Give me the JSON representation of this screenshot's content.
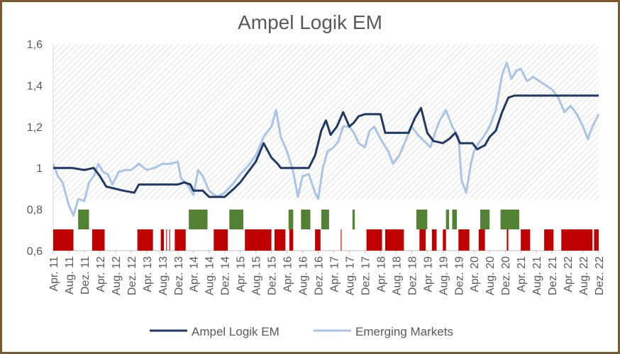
{
  "chart_data": {
    "type": "line",
    "title": "Ampel Logik EM",
    "ylim": [
      0.6,
      1.6
    ],
    "y_ticks": [
      "1,6",
      "1,4",
      "1,2",
      "1",
      "0,8",
      "0,6"
    ],
    "x_tick_labels": [
      "Apr. 11",
      "Aug. 11",
      "Dez. 11",
      "Apr. 12",
      "Aug. 12",
      "Dez. 12",
      "Apr. 13",
      "Aug. 13",
      "Dez. 13",
      "Apr. 14",
      "Aug. 14",
      "Dez. 14",
      "Apr. 15",
      "Aug. 15",
      "Dez. 15",
      "Apr. 16",
      "Aug. 16",
      "Dez. 16",
      "Apr. 17",
      "Aug. 17",
      "Dez. 17",
      "Apr. 18",
      "Aug. 18",
      "Dez. 18",
      "Apr. 19",
      "Aug. 19",
      "Dez. 19",
      "Apr. 20",
      "Aug. 20",
      "Dez. 20",
      "Apr. 21",
      "Aug. 21",
      "Dez. 21",
      "Apr. 22",
      "Aug. 22",
      "Dez. 22"
    ],
    "grid": false,
    "legend_position": "bottom",
    "series": [
      {
        "name": "Ampel Logik EM",
        "color": "#1f3864",
        "points": [
          [
            0,
            1.0
          ],
          [
            1.2,
            1.0
          ],
          [
            2.0,
            0.99
          ],
          [
            2.6,
            1.0
          ],
          [
            3.0,
            0.96
          ],
          [
            3.4,
            0.91
          ],
          [
            4.5,
            0.89
          ],
          [
            5.2,
            0.88
          ],
          [
            5.5,
            0.92
          ],
          [
            8.0,
            0.92
          ],
          [
            8.4,
            0.93
          ],
          [
            8.8,
            0.92
          ],
          [
            9.0,
            0.89
          ],
          [
            9.6,
            0.89
          ],
          [
            10.0,
            0.86
          ],
          [
            11.0,
            0.86
          ],
          [
            11.6,
            0.9
          ],
          [
            12.0,
            0.93
          ],
          [
            12.6,
            0.99
          ],
          [
            13.0,
            1.03
          ],
          [
            13.5,
            1.12
          ],
          [
            14.0,
            1.05
          ],
          [
            14.4,
            1.02
          ],
          [
            14.6,
            1.0
          ],
          [
            16.0,
            1.0
          ],
          [
            16.4,
            1.0
          ],
          [
            16.8,
            1.06
          ],
          [
            17.2,
            1.18
          ],
          [
            17.5,
            1.23
          ],
          [
            17.8,
            1.16
          ],
          [
            18.2,
            1.2
          ],
          [
            18.6,
            1.27
          ],
          [
            19.0,
            1.2
          ],
          [
            19.3,
            1.22
          ],
          [
            19.6,
            1.25
          ],
          [
            20.0,
            1.26
          ],
          [
            21.0,
            1.26
          ],
          [
            21.3,
            1.17
          ],
          [
            22.8,
            1.17
          ],
          [
            23.2,
            1.24
          ],
          [
            23.6,
            1.29
          ],
          [
            24.0,
            1.17
          ],
          [
            24.4,
            1.13
          ],
          [
            25.0,
            1.12
          ],
          [
            25.4,
            1.14
          ],
          [
            25.8,
            1.17
          ],
          [
            26.1,
            1.12
          ],
          [
            26.6,
            1.12
          ],
          [
            26.9,
            1.12
          ],
          [
            27.2,
            1.09
          ],
          [
            27.7,
            1.11
          ],
          [
            28.0,
            1.15
          ],
          [
            28.4,
            1.18
          ],
          [
            28.8,
            1.27
          ],
          [
            29.2,
            1.34
          ],
          [
            29.6,
            1.35
          ],
          [
            30.0,
            1.35
          ],
          [
            35.0,
            1.35
          ]
        ]
      },
      {
        "name": "Emerging Markets",
        "color": "#a9c4e6",
        "points": [
          [
            0,
            1.02
          ],
          [
            0.3,
            0.96
          ],
          [
            0.6,
            0.93
          ],
          [
            1.0,
            0.82
          ],
          [
            1.3,
            0.77
          ],
          [
            1.6,
            0.85
          ],
          [
            2.0,
            0.84
          ],
          [
            2.3,
            0.93
          ],
          [
            2.6,
            0.96
          ],
          [
            2.9,
            1.02
          ],
          [
            3.2,
            0.98
          ],
          [
            3.5,
            0.97
          ],
          [
            3.8,
            0.92
          ],
          [
            4.2,
            0.98
          ],
          [
            4.6,
            0.99
          ],
          [
            5.0,
            0.99
          ],
          [
            5.5,
            1.02
          ],
          [
            6.0,
            0.99
          ],
          [
            6.5,
            1.0
          ],
          [
            7.0,
            1.02
          ],
          [
            7.5,
            1.02
          ],
          [
            8.0,
            1.03
          ],
          [
            8.2,
            0.95
          ],
          [
            8.6,
            0.92
          ],
          [
            9.0,
            0.87
          ],
          [
            9.3,
            0.99
          ],
          [
            9.6,
            0.96
          ],
          [
            10.0,
            0.89
          ],
          [
            10.5,
            0.86
          ],
          [
            11.0,
            0.88
          ],
          [
            11.5,
            0.92
          ],
          [
            12.0,
            0.97
          ],
          [
            12.5,
            1.01
          ],
          [
            13.0,
            1.06
          ],
          [
            13.5,
            1.15
          ],
          [
            14.0,
            1.2
          ],
          [
            14.3,
            1.28
          ],
          [
            14.6,
            1.15
          ],
          [
            15.0,
            1.08
          ],
          [
            15.4,
            0.98
          ],
          [
            15.7,
            0.86
          ],
          [
            16.0,
            0.96
          ],
          [
            16.4,
            0.97
          ],
          [
            16.8,
            0.88
          ],
          [
            17.0,
            0.85
          ],
          [
            17.3,
            1.0
          ],
          [
            17.6,
            1.08
          ],
          [
            18.0,
            1.1
          ],
          [
            18.3,
            1.13
          ],
          [
            18.6,
            1.2
          ],
          [
            19.0,
            1.2
          ],
          [
            19.3,
            1.17
          ],
          [
            19.6,
            1.12
          ],
          [
            20.0,
            1.1
          ],
          [
            20.3,
            1.18
          ],
          [
            20.6,
            1.2
          ],
          [
            21.0,
            1.14
          ],
          [
            21.5,
            1.08
          ],
          [
            21.8,
            1.02
          ],
          [
            22.2,
            1.06
          ],
          [
            22.6,
            1.13
          ],
          [
            23.0,
            1.2
          ],
          [
            23.4,
            1.16
          ],
          [
            23.8,
            1.13
          ],
          [
            24.2,
            1.1
          ],
          [
            24.5,
            1.17
          ],
          [
            24.8,
            1.23
          ],
          [
            25.2,
            1.28
          ],
          [
            25.6,
            1.2
          ],
          [
            26.0,
            1.15
          ],
          [
            26.2,
            0.94
          ],
          [
            26.5,
            0.88
          ],
          [
            26.8,
            1.02
          ],
          [
            27.0,
            1.08
          ],
          [
            27.3,
            1.12
          ],
          [
            27.6,
            1.15
          ],
          [
            28.0,
            1.2
          ],
          [
            28.4,
            1.28
          ],
          [
            28.8,
            1.45
          ],
          [
            29.1,
            1.51
          ],
          [
            29.4,
            1.43
          ],
          [
            29.7,
            1.47
          ],
          [
            30.0,
            1.48
          ],
          [
            30.4,
            1.42
          ],
          [
            30.8,
            1.44
          ],
          [
            31.2,
            1.42
          ],
          [
            31.6,
            1.4
          ],
          [
            32.0,
            1.38
          ],
          [
            32.4,
            1.34
          ],
          [
            32.8,
            1.27
          ],
          [
            33.2,
            1.3
          ],
          [
            33.6,
            1.26
          ],
          [
            34.0,
            1.2
          ],
          [
            34.3,
            1.14
          ],
          [
            34.6,
            1.2
          ],
          [
            35.0,
            1.26
          ]
        ]
      }
    ],
    "signal_bars": {
      "green": [
        [
          1.6,
          2.3
        ],
        [
          8.7,
          9.9
        ],
        [
          11.3,
          12.2
        ],
        [
          15.1,
          15.4
        ],
        [
          15.9,
          16.5
        ],
        [
          17.2,
          17.7
        ],
        [
          19.2,
          19.35
        ],
        [
          23.3,
          24.0
        ],
        [
          25.2,
          25.4
        ],
        [
          25.6,
          25.9
        ],
        [
          27.4,
          28.0
        ],
        [
          28.7,
          29.9
        ]
      ],
      "red": [
        [
          0.0,
          1.3
        ],
        [
          2.5,
          3.3
        ],
        [
          5.4,
          6.4
        ],
        [
          6.9,
          7.1
        ],
        [
          7.25,
          7.3
        ],
        [
          7.45,
          7.5
        ],
        [
          7.8,
          8.5
        ],
        [
          10.3,
          11.2
        ],
        [
          12.3,
          14.0
        ],
        [
          14.2,
          14.9
        ],
        [
          15.15,
          15.4
        ],
        [
          16.8,
          17.15
        ],
        [
          18.45,
          18.5
        ],
        [
          20.1,
          21.1
        ],
        [
          21.3,
          22.5
        ],
        [
          23.5,
          23.9
        ],
        [
          24.3,
          24.6
        ],
        [
          25.0,
          25.2
        ],
        [
          26.0,
          26.7
        ],
        [
          27.3,
          27.7
        ],
        [
          29.1,
          29.2
        ],
        [
          30.0,
          30.6
        ],
        [
          31.5,
          32.1
        ],
        [
          32.6,
          34.6
        ],
        [
          34.7,
          35.0
        ]
      ]
    }
  }
}
